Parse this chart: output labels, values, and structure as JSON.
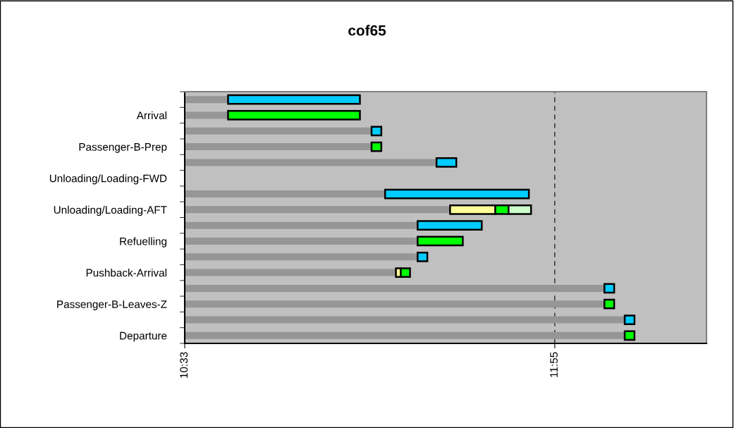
{
  "chart_data": {
    "type": "bar",
    "orientation": "horizontal",
    "title": "cof65",
    "categories": [
      null,
      "Arrival",
      null,
      "Passenger-B-Prep",
      null,
      "Unloading/Loading-FWD",
      null,
      "Unloading/Loading-AFT",
      null,
      "Refuelling",
      null,
      "Pushback-Arrival",
      null,
      "Passenger-B-Leaves-Z",
      null,
      "Departure"
    ],
    "series": [
      {
        "color": "#969696",
        "values": [
          10.71,
          10.71,
          11.24,
          11.24,
          11.48,
          null,
          11.29,
          11.53,
          11.41,
          11.41,
          11.41,
          11.33,
          12.1,
          12.1,
          12.175,
          12.175
        ]
      },
      {
        "color": "#00ccff",
        "base": [
          10.71,
          null,
          11.24,
          null,
          11.48,
          null,
          11.29,
          null,
          11.41,
          null,
          11.41,
          null,
          12.1,
          null,
          12.175,
          null
        ],
        "values": [
          0.487,
          null,
          0.036,
          null,
          0.073,
          null,
          0.531,
          null,
          0.237,
          null,
          0.036,
          null,
          0.036,
          null,
          0.036,
          null
        ]
      },
      {
        "color": "#ffff99",
        "base": [
          null,
          null,
          null,
          null,
          null,
          null,
          null,
          11.53,
          null,
          null,
          null,
          11.33,
          null,
          null,
          null,
          null
        ],
        "values": [
          null,
          null,
          null,
          null,
          null,
          null,
          null,
          0.167,
          null,
          null,
          null,
          0.018,
          null,
          null,
          null,
          null
        ]
      },
      {
        "color": "#00ff00",
        "base": [
          null,
          10.71,
          null,
          11.24,
          null,
          null,
          null,
          11.697,
          null,
          11.41,
          null,
          11.348,
          null,
          12.1,
          null,
          12.175
        ],
        "values": [
          null,
          0.487,
          null,
          0.036,
          null,
          null,
          null,
          0.049,
          null,
          0.167,
          null,
          0.034,
          null,
          0.036,
          null,
          0.036
        ]
      },
      {
        "color": "#ccffcc",
        "base": [
          null,
          null,
          null,
          null,
          null,
          null,
          null,
          11.746,
          null,
          null,
          null,
          null,
          null,
          null,
          null,
          null
        ],
        "values": [
          null,
          null,
          null,
          null,
          null,
          null,
          null,
          0.083,
          null,
          null,
          null,
          null,
          null,
          null,
          null,
          null
        ]
      }
    ],
    "xlim": [
      10.55,
      12.477
    ],
    "xticks": [
      {
        "value": 10.55,
        "label": "10:33"
      },
      {
        "value": 11.9167,
        "label": "11:55"
      }
    ],
    "grid": "x",
    "legend": false
  }
}
